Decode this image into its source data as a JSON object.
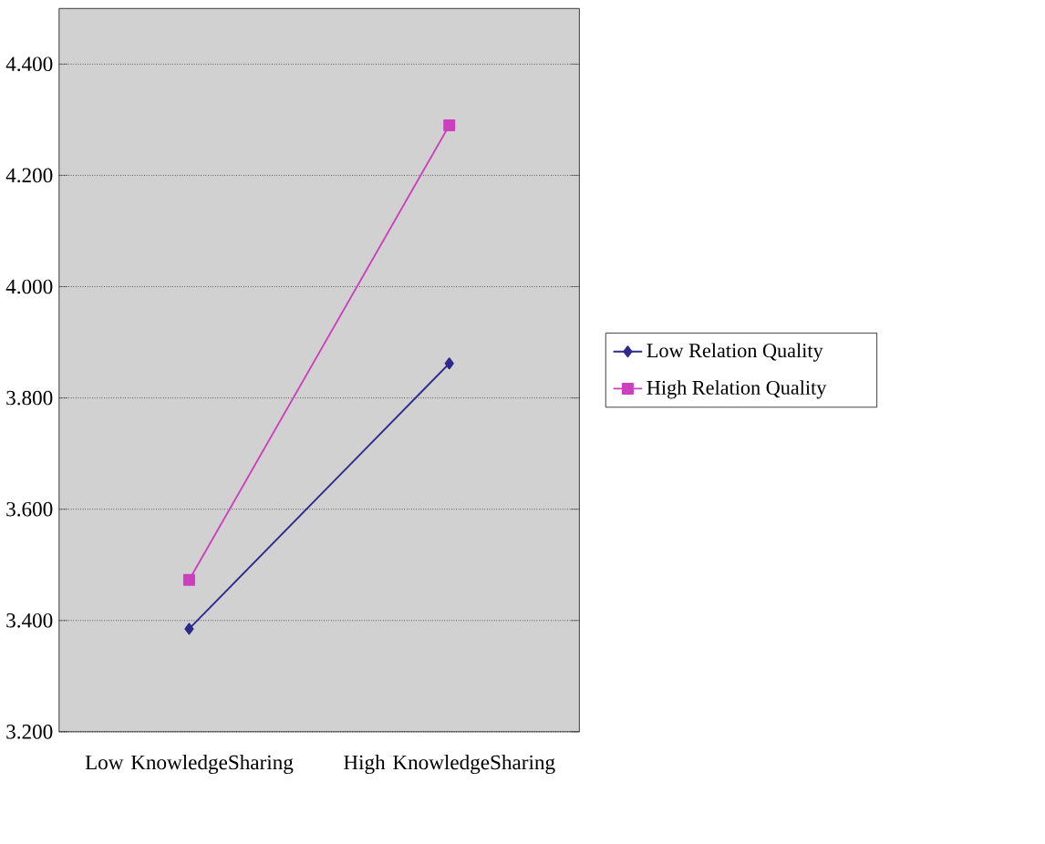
{
  "chart_data": {
    "type": "line",
    "categories": [
      "Low KnowledgeSharing",
      "High KnowledgeSharing"
    ],
    "series": [
      {
        "name": "Low Relation Quality",
        "color": "#2e2a8c",
        "marker": "diamond",
        "values": [
          3.385,
          3.862
        ]
      },
      {
        "name": "High Relation Quality",
        "color": "#cc3fbf",
        "marker": "square",
        "values": [
          3.473,
          4.29
        ]
      }
    ],
    "ylim": [
      3.2,
      4.5
    ],
    "yticks": [
      {
        "value": 3.2,
        "label": "3.200"
      },
      {
        "value": 3.4,
        "label": "3.400"
      },
      {
        "value": 3.6,
        "label": "3.600"
      },
      {
        "value": 3.8,
        "label": "3.800"
      },
      {
        "value": 4.0,
        "label": "4.000"
      },
      {
        "value": 4.2,
        "label": "4.200"
      },
      {
        "value": 4.4,
        "label": "4.400"
      }
    ],
    "grid": "y",
    "legend": "right"
  }
}
